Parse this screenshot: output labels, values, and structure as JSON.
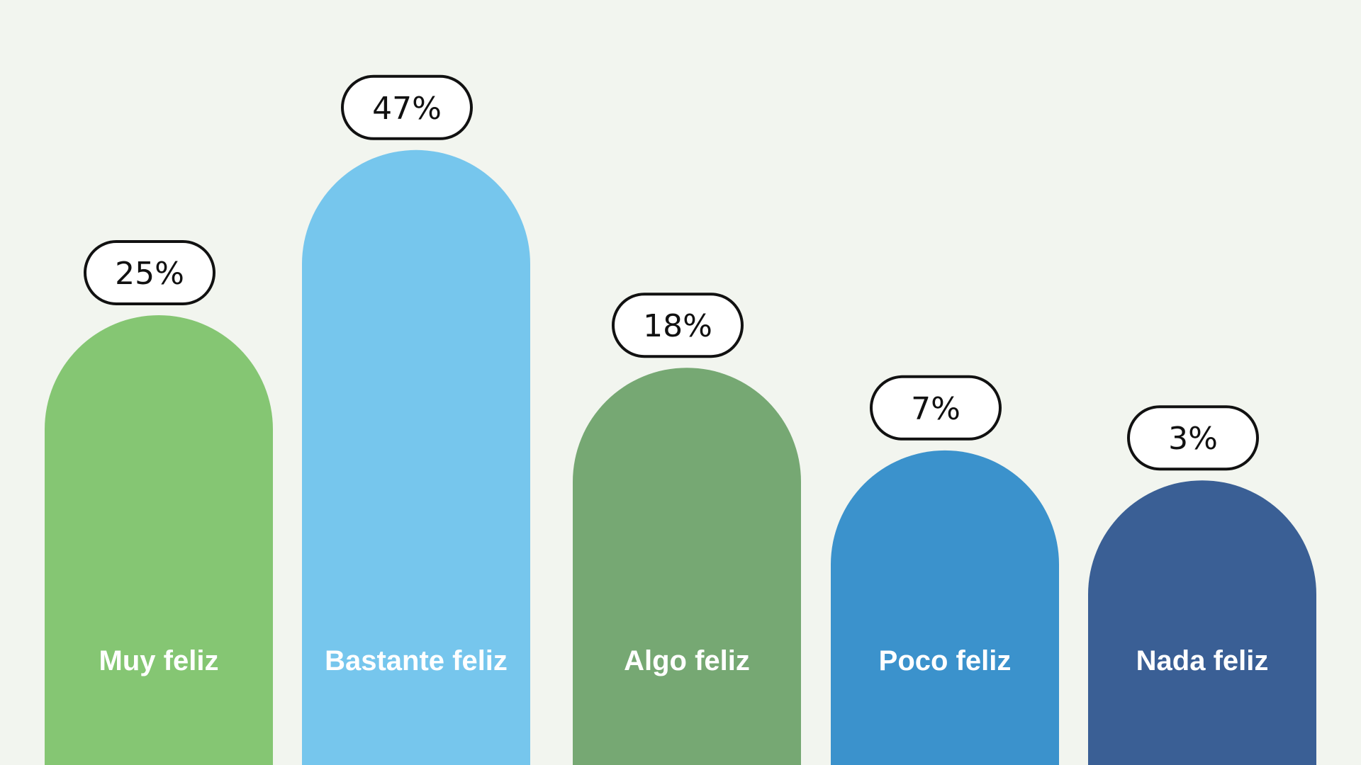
{
  "chart_data": {
    "type": "bar",
    "categories": [
      "Muy feliz",
      "Bastante feliz",
      "Algo feliz",
      "Poco feliz",
      "Nada feliz"
    ],
    "values": [
      25,
      47,
      18,
      7,
      3
    ],
    "value_labels": [
      "25%",
      "47%",
      "18%",
      "7%",
      "3%"
    ],
    "colors": [
      "#85c673",
      "#76c6ed",
      "#76a873",
      "#3b92cc",
      "#3a5f95"
    ],
    "background": "#f2f5ef",
    "grid": false,
    "legend": "none"
  }
}
